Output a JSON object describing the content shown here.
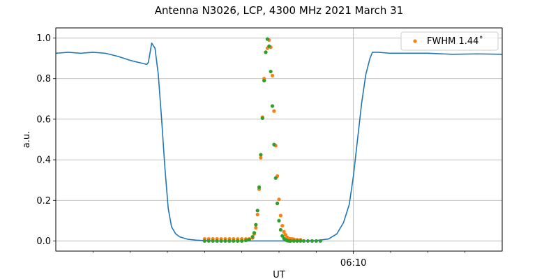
{
  "chart_data": {
    "type": "line",
    "title": "Antenna N3026, LCP, 4300 MHz 2021 March 31",
    "xlabel": "UT",
    "ylabel": "a.u.",
    "xlim": [
      "06:04:00",
      "06:13:00"
    ],
    "ylim": [
      -0.05,
      1.05
    ],
    "yticks": [
      "0.0",
      "0.2",
      "0.4",
      "0.6",
      "0.8",
      "1.0"
    ],
    "xticks_labeled": [
      {
        "label": "06:10",
        "x": "06:10:00"
      }
    ],
    "xticks_minor": [
      "06:04:45",
      "06:05:30",
      "06:06:15",
      "06:07:00",
      "06:07:45",
      "06:08:30",
      "06:09:15",
      "06:10:45",
      "06:11:30",
      "06:12:15"
    ],
    "grid": true,
    "legend": {
      "position": "top-right",
      "entries": [
        "FWHM 1.44$^\\circ$"
      ],
      "display": [
        "FWHM 1.44˚"
      ]
    },
    "colors": {
      "scan": "#1f77b4",
      "fwhm": "#ff7f0e",
      "fit": "#2ca02c",
      "grid": "#b0b0b0"
    },
    "series": [
      {
        "style": "line",
        "x": [
          "06:04:00",
          "06:04:15",
          "06:04:30",
          "06:04:45",
          "06:05:00",
          "06:05:15",
          "06:05:30",
          "06:05:45",
          "06:05:50",
          "06:05:52",
          "06:05:56",
          "06:06:00",
          "06:06:04",
          "06:06:08",
          "06:06:12",
          "06:06:16",
          "06:06:20",
          "06:06:25",
          "06:06:30",
          "06:06:40",
          "06:06:50",
          "06:07:00",
          "06:07:15",
          "06:07:30",
          "06:07:45",
          "06:08:00",
          "06:08:30",
          "06:09:00",
          "06:09:15",
          "06:09:30",
          "06:09:40",
          "06:09:48",
          "06:09:55",
          "06:10:00",
          "06:10:05",
          "06:10:10",
          "06:10:15",
          "06:10:20",
          "06:10:23",
          "06:10:30",
          "06:10:45",
          "06:11:00",
          "06:11:30",
          "06:12:00",
          "06:12:30",
          "06:13:00"
        ],
        "y": [
          0.925,
          0.93,
          0.925,
          0.93,
          0.925,
          0.91,
          0.89,
          0.875,
          0.87,
          0.88,
          0.975,
          0.95,
          0.82,
          0.6,
          0.36,
          0.16,
          0.07,
          0.035,
          0.02,
          0.008,
          0.004,
          0.002,
          0.0,
          0.0,
          0.0,
          0.0,
          0.0,
          0.0,
          0.002,
          0.01,
          0.035,
          0.09,
          0.18,
          0.32,
          0.5,
          0.68,
          0.82,
          0.9,
          0.93,
          0.93,
          0.925,
          0.925,
          0.925,
          0.92,
          0.922,
          0.92
        ]
      },
      {
        "name": "FWHM 1.44˚",
        "style": "points",
        "x": [
          "06:07:00",
          "06:07:05",
          "06:07:10",
          "06:07:15",
          "06:07:20",
          "06:07:25",
          "06:07:30",
          "06:07:35",
          "06:07:40",
          "06:07:45",
          "06:07:50",
          "06:07:54",
          "06:07:58",
          "06:08:00",
          "06:08:02",
          "06:08:04",
          "06:08:06",
          "06:08:08",
          "06:08:10",
          "06:08:12",
          "06:08:14",
          "06:08:16",
          "06:08:18",
          "06:08:20",
          "06:08:22",
          "06:08:24",
          "06:08:26",
          "06:08:28",
          "06:08:30",
          "06:08:32",
          "06:08:34",
          "06:08:36",
          "06:08:38",
          "06:08:40",
          "06:08:42",
          "06:08:44",
          "06:08:46",
          "06:08:48",
          "06:08:52",
          "06:08:56"
        ],
        "y": [
          0.01,
          0.01,
          0.01,
          0.01,
          0.01,
          0.01,
          0.01,
          0.01,
          0.01,
          0.01,
          0.01,
          0.01,
          0.015,
          0.035,
          0.065,
          0.13,
          0.255,
          0.41,
          0.61,
          0.8,
          0.93,
          0.95,
          0.99,
          0.955,
          0.815,
          0.64,
          0.47,
          0.32,
          0.205,
          0.125,
          0.075,
          0.045,
          0.03,
          0.018,
          0.012,
          0.01,
          0.01,
          0.008,
          0.006,
          0.006
        ]
      },
      {
        "style": "points",
        "x": [
          "06:07:00",
          "06:07:05",
          "06:07:10",
          "06:07:15",
          "06:07:20",
          "06:07:25",
          "06:07:30",
          "06:07:35",
          "06:07:40",
          "06:07:45",
          "06:07:50",
          "06:07:54",
          "06:07:58",
          "06:08:00",
          "06:08:02",
          "06:08:04",
          "06:08:06",
          "06:08:08",
          "06:08:10",
          "06:08:12",
          "06:08:14",
          "06:08:16",
          "06:08:18",
          "06:08:20",
          "06:08:22",
          "06:08:24",
          "06:08:26",
          "06:08:28",
          "06:08:30",
          "06:08:32",
          "06:08:34",
          "06:08:36",
          "06:08:38",
          "06:08:40",
          "06:08:42",
          "06:08:44",
          "06:08:48",
          "06:08:52",
          "06:08:56",
          "06:09:00",
          "06:09:05",
          "06:09:10",
          "06:09:15",
          "06:09:20"
        ],
        "y": [
          0.0,
          0.0,
          0.0,
          0.0,
          0.0,
          0.0,
          0.0,
          0.0,
          0.0,
          0.0,
          0.003,
          0.007,
          0.02,
          0.04,
          0.08,
          0.15,
          0.265,
          0.425,
          0.605,
          0.79,
          0.93,
          0.995,
          0.96,
          0.835,
          0.665,
          0.475,
          0.31,
          0.185,
          0.1,
          0.055,
          0.025,
          0.012,
          0.005,
          0.002,
          0.0,
          0.0,
          0.0,
          0.0,
          0.0,
          0.0,
          0.0,
          0.0,
          0.0,
          0.0
        ]
      }
    ]
  }
}
